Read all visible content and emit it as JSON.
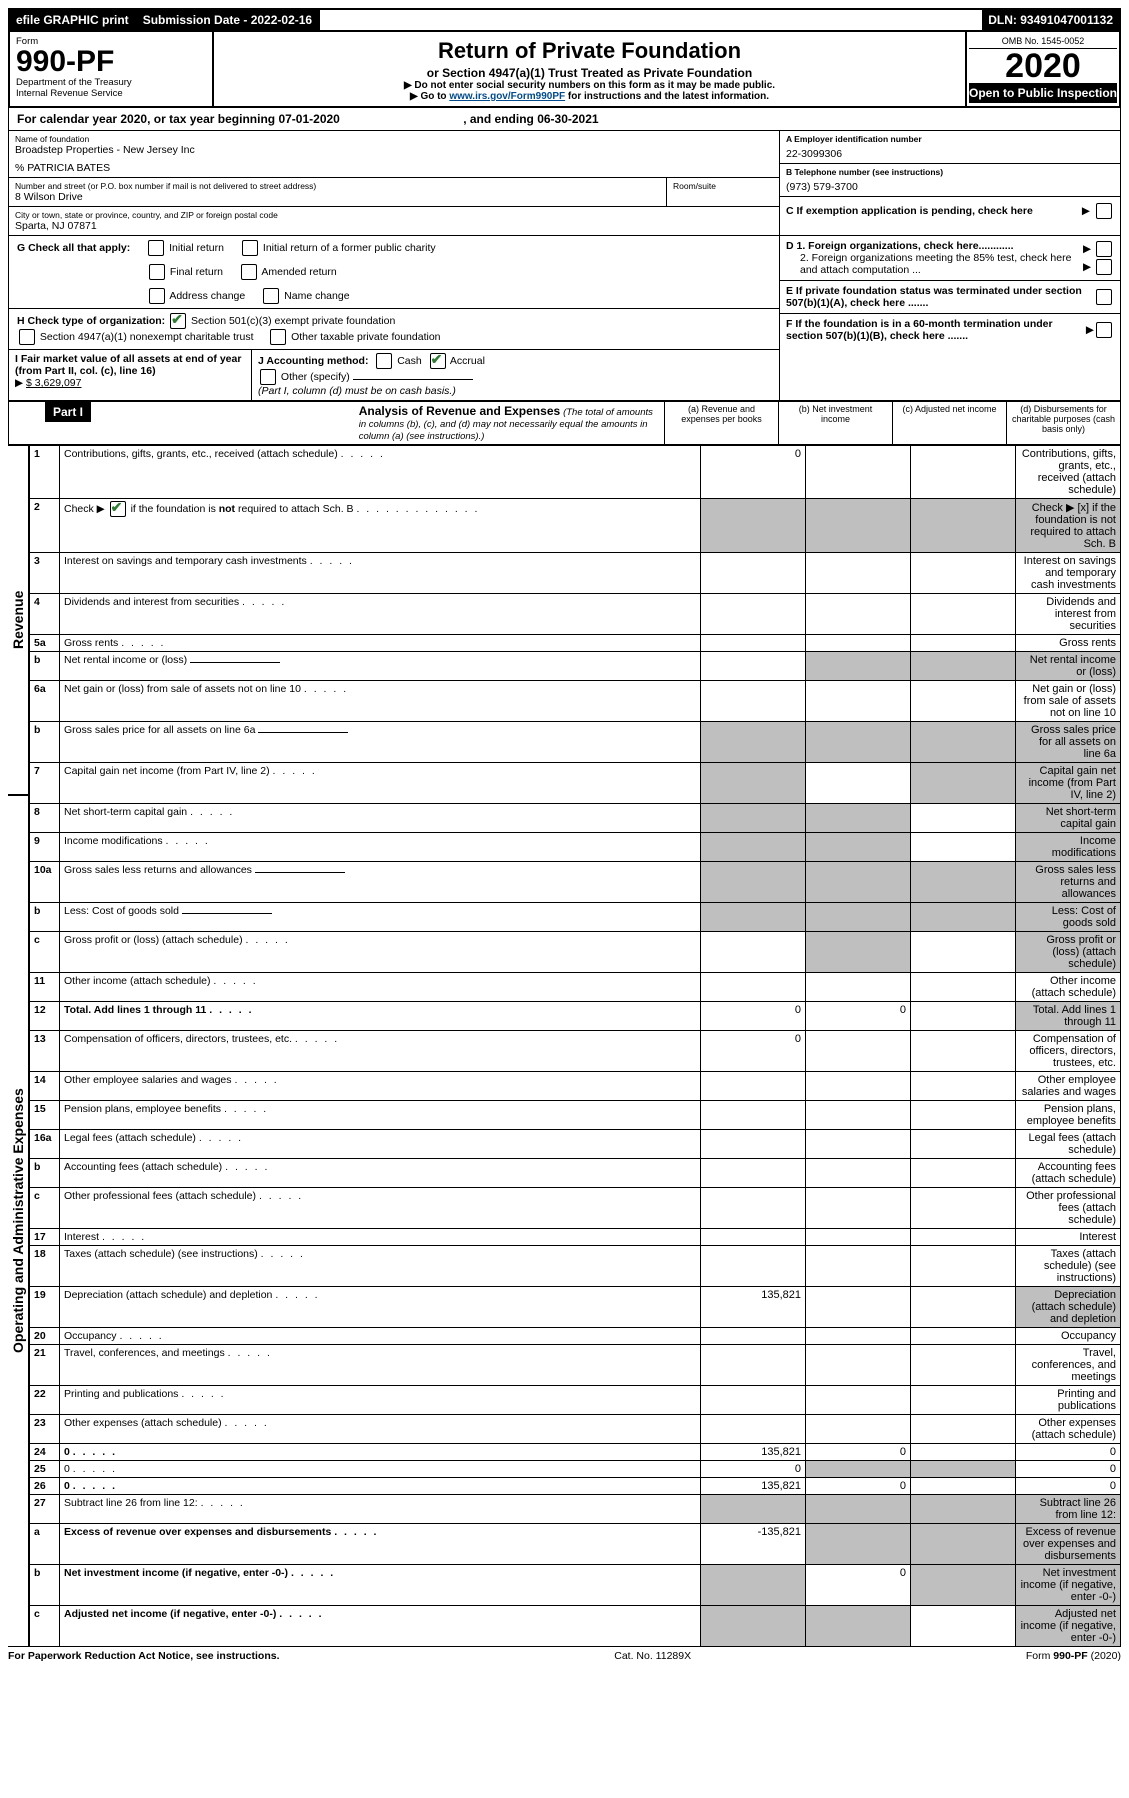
{
  "topbar": {
    "efile": "efile GRAPHIC print",
    "sub_label": "Submission Date - 2022-02-16",
    "dln": "DLN: 93491047001132"
  },
  "header": {
    "form_word": "Form",
    "form_no": "990-PF",
    "dept": "Department of the Treasury",
    "irs": "Internal Revenue Service",
    "title": "Return of Private Foundation",
    "subtitle": "or Section 4947(a)(1) Trust Treated as Private Foundation",
    "instr1": "▶ Do not enter social security numbers on this form as it may be made public.",
    "instr2_prefix": "▶ Go to ",
    "instr2_link": "www.irs.gov/Form990PF",
    "instr2_suffix": " for instructions and the latest information.",
    "omb": "OMB No. 1545-0052",
    "year": "2020",
    "open": "Open to Public Inspection"
  },
  "calendar_line": {
    "prefix": "For calendar year 2020, or tax year beginning ",
    "begin": "07-01-2020",
    "mid": " , and ending ",
    "end": "06-30-2021"
  },
  "identity": {
    "name_label": "Name of foundation",
    "name": "Broadstep Properties - New Jersey Inc",
    "care_of": "% PATRICIA BATES",
    "addr_label": "Number and street (or P.O. box number if mail is not delivered to street address)",
    "addr": "8 Wilson Drive",
    "room_label": "Room/suite",
    "city_label": "City or town, state or province, country, and ZIP or foreign postal code",
    "city": "Sparta, NJ  07871",
    "ein_label": "A Employer identification number",
    "ein": "22-3099306",
    "phone_label": "B Telephone number (see instructions)",
    "phone": "(973) 579-3700",
    "c_label": "C If exemption application is pending, check here",
    "d1": "D 1. Foreign organizations, check here............",
    "d2": "2. Foreign organizations meeting the 85% test, check here and attach computation ...",
    "e": "E If private foundation status was terminated under section 507(b)(1)(A), check here .......",
    "f": "F If the foundation is in a 60-month termination under section 507(b)(1)(B), check here .......",
    "g_label": "G Check all that apply:",
    "g_opts": [
      "Initial return",
      "Final return",
      "Address change",
      "Initial return of a former public charity",
      "Amended return",
      "Name change"
    ],
    "h_label": "H Check type of organization:",
    "h1": "Section 501(c)(3) exempt private foundation",
    "h2": "Section 4947(a)(1) nonexempt charitable trust",
    "h3": "Other taxable private foundation",
    "i_label": "I Fair market value of all assets at end of year (from Part II, col. (c), line 16)",
    "i_value": "$  3,629,097",
    "j_label": "J Accounting method:",
    "j_cash": "Cash",
    "j_accrual": "Accrual",
    "j_other": "Other (specify)",
    "j_note": "(Part I, column (d) must be on cash basis.)"
  },
  "part1": {
    "label": "Part I",
    "title": "Analysis of Revenue and Expenses",
    "subtitle": " (The total of amounts in columns (b), (c), and (d) may not necessarily equal the amounts in column (a) (see instructions).)",
    "col_a": "(a) Revenue and expenses per books",
    "col_b": "(b) Net investment income",
    "col_c": "(c) Adjusted net income",
    "col_d": "(d) Disbursements for charitable purposes (cash basis only)"
  },
  "side_labels": {
    "revenue": "Revenue",
    "expenses": "Operating and Administrative Expenses"
  },
  "rows": [
    {
      "n": "1",
      "d": "Contributions, gifts, grants, etc., received (attach schedule)",
      "a": "0"
    },
    {
      "n": "2",
      "d": "Check ▶ [x] if the foundation is not required to attach Sch. B",
      "span": true
    },
    {
      "n": "3",
      "d": "Interest on savings and temporary cash investments"
    },
    {
      "n": "4",
      "d": "Dividends and interest from securities"
    },
    {
      "n": "5a",
      "d": "Gross rents"
    },
    {
      "n": "b",
      "d": "Net rental income or (loss)",
      "inline_box": true,
      "grey_bcd": true
    },
    {
      "n": "6a",
      "d": "Net gain or (loss) from sale of assets not on line 10",
      "grey_d_only": false
    },
    {
      "n": "b",
      "d": "Gross sales price for all assets on line 6a",
      "inline_box": true,
      "grey_all": true
    },
    {
      "n": "7",
      "d": "Capital gain net income (from Part IV, line 2)",
      "grey_acd": true
    },
    {
      "n": "8",
      "d": "Net short-term capital gain",
      "grey_abd": true
    },
    {
      "n": "9",
      "d": "Income modifications",
      "grey_abd": true
    },
    {
      "n": "10a",
      "d": "Gross sales less returns and allowances",
      "inline_box": true,
      "grey_all": true
    },
    {
      "n": "b",
      "d": "Less: Cost of goods sold",
      "inline_box": true,
      "grey_all": true
    },
    {
      "n": "c",
      "d": "Gross profit or (loss) (attach schedule)",
      "grey_bd": true
    },
    {
      "n": "11",
      "d": "Other income (attach schedule)"
    },
    {
      "n": "12",
      "d": "Total. Add lines 1 through 11",
      "bold": true,
      "a": "0",
      "b": "0",
      "grey_d": true
    },
    {
      "n": "13",
      "d": "Compensation of officers, directors, trustees, etc.",
      "a": "0"
    },
    {
      "n": "14",
      "d": "Other employee salaries and wages"
    },
    {
      "n": "15",
      "d": "Pension plans, employee benefits"
    },
    {
      "n": "16a",
      "d": "Legal fees (attach schedule)"
    },
    {
      "n": "b",
      "d": "Accounting fees (attach schedule)"
    },
    {
      "n": "c",
      "d": "Other professional fees (attach schedule)"
    },
    {
      "n": "17",
      "d": "Interest"
    },
    {
      "n": "18",
      "d": "Taxes (attach schedule) (see instructions)"
    },
    {
      "n": "19",
      "d": "Depreciation (attach schedule) and depletion",
      "a": "135,821",
      "grey_d": true
    },
    {
      "n": "20",
      "d": "Occupancy"
    },
    {
      "n": "21",
      "d": "Travel, conferences, and meetings"
    },
    {
      "n": "22",
      "d": "Printing and publications"
    },
    {
      "n": "23",
      "d": "Other expenses (attach schedule)"
    },
    {
      "n": "24",
      "d": "0",
      "bold": true,
      "a": "135,821",
      "b": "0"
    },
    {
      "n": "25",
      "d": "0",
      "a": "0",
      "grey_bc": true
    },
    {
      "n": "26",
      "d": "0",
      "bold": true,
      "a": "135,821",
      "b": "0"
    },
    {
      "n": "27",
      "d": "Subtract line 26 from line 12:",
      "grey_all": true
    },
    {
      "n": "a",
      "d": "Excess of revenue over expenses and disbursements",
      "bold": true,
      "a": "-135,821",
      "grey_bcd": true
    },
    {
      "n": "b",
      "d": "Net investment income (if negative, enter -0-)",
      "bold": true,
      "grey_a": true,
      "b": "0",
      "grey_cd": true
    },
    {
      "n": "c",
      "d": "Adjusted net income (if negative, enter -0-)",
      "bold": true,
      "grey_ab": true,
      "grey_d": true
    }
  ],
  "footer": {
    "left": "For Paperwork Reduction Act Notice, see instructions.",
    "mid": "Cat. No. 11289X",
    "right": "Form 990-PF (2020)"
  }
}
